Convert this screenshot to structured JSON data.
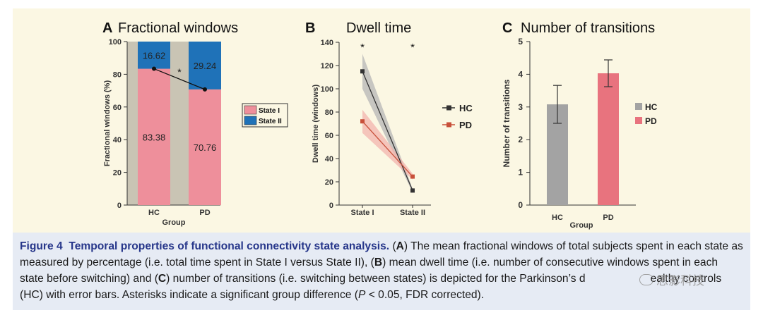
{
  "chart_data": [
    {
      "type": "bar",
      "panel_letter": "A",
      "title": "Fractional windows",
      "xlabel": "Group",
      "ylabel": "Fractional windows (%)",
      "ylim": [
        0,
        100
      ],
      "yticks": [
        "0",
        "20",
        "40",
        "60",
        "80",
        "100"
      ],
      "categories": [
        "HC",
        "PD"
      ],
      "stacked": true,
      "series": [
        {
          "name": "State I",
          "color": "#ee8f9b",
          "values": [
            83.38,
            70.76
          ],
          "labels": [
            "83.38",
            "70.76"
          ]
        },
        {
          "name": "State II",
          "color": "#1f72b8",
          "values": [
            16.62,
            29.24
          ],
          "labels": [
            "16.62",
            "29.24"
          ]
        }
      ],
      "connector_line": [
        83.38,
        70.76
      ],
      "annotation": "*",
      "legend": "right"
    },
    {
      "type": "line",
      "panel_letter": "B",
      "title": "Dwell time",
      "xlabel": "",
      "ylabel": "Dwell time (windows)",
      "ylim": [
        0,
        140
      ],
      "yticks": [
        "0",
        "20",
        "40",
        "60",
        "80",
        "100",
        "120",
        "140"
      ],
      "categories": [
        "State I",
        "State II"
      ],
      "series": [
        {
          "name": "HC",
          "color": "#333333",
          "band_color": "#b5b5b5",
          "values": [
            115,
            12.5
          ],
          "lower": [
            100,
            11
          ],
          "upper": [
            130,
            14
          ]
        },
        {
          "name": "PD",
          "color": "#c8503a",
          "band_color": "#f3b4ae",
          "values": [
            72,
            24.5
          ],
          "lower": [
            62,
            22
          ],
          "upper": [
            82,
            27
          ]
        }
      ],
      "annotations": [
        "*",
        "*"
      ],
      "legend": "right"
    },
    {
      "type": "bar",
      "panel_letter": "C",
      "title": "Number of transitions",
      "xlabel": "Group",
      "ylabel": "Number of transitions",
      "ylim": [
        0,
        5
      ],
      "yticks": [
        "0",
        "1",
        "2",
        "3",
        "4",
        "5"
      ],
      "categories": [
        "HC",
        "PD"
      ],
      "values": [
        3.08,
        4.03
      ],
      "error_low": [
        2.5,
        3.62
      ],
      "error_high": [
        3.66,
        4.44
      ],
      "colors": [
        "#a3a3a3",
        "#e8737e"
      ],
      "series_names": [
        "HC",
        "PD"
      ],
      "legend": "right"
    }
  ],
  "caption": {
    "figure_label": "Figure 4",
    "title": "Temporal properties of functional connectivity state analysis.",
    "p1": " (",
    "A": "A",
    "p2": ") The mean fractional windows of total subjects spent in each state as measured by percentage (i.e. total time spent in State I versus State II), (",
    "B": "B",
    "p3": ") mean dwell time (i.e. number of consecutive windows spent in each state before switching) and (",
    "C": "C",
    "p4": ") number of transitions (i.e. switching between states) is depicted for the Parkinson’s d",
    "p5": "ealthy controls (HC) with error bars. Asterisks indicate a significant group difference (",
    "P": "P",
    "p6": " < 0.05, FDR corrected)."
  },
  "watermark": "思影科技"
}
